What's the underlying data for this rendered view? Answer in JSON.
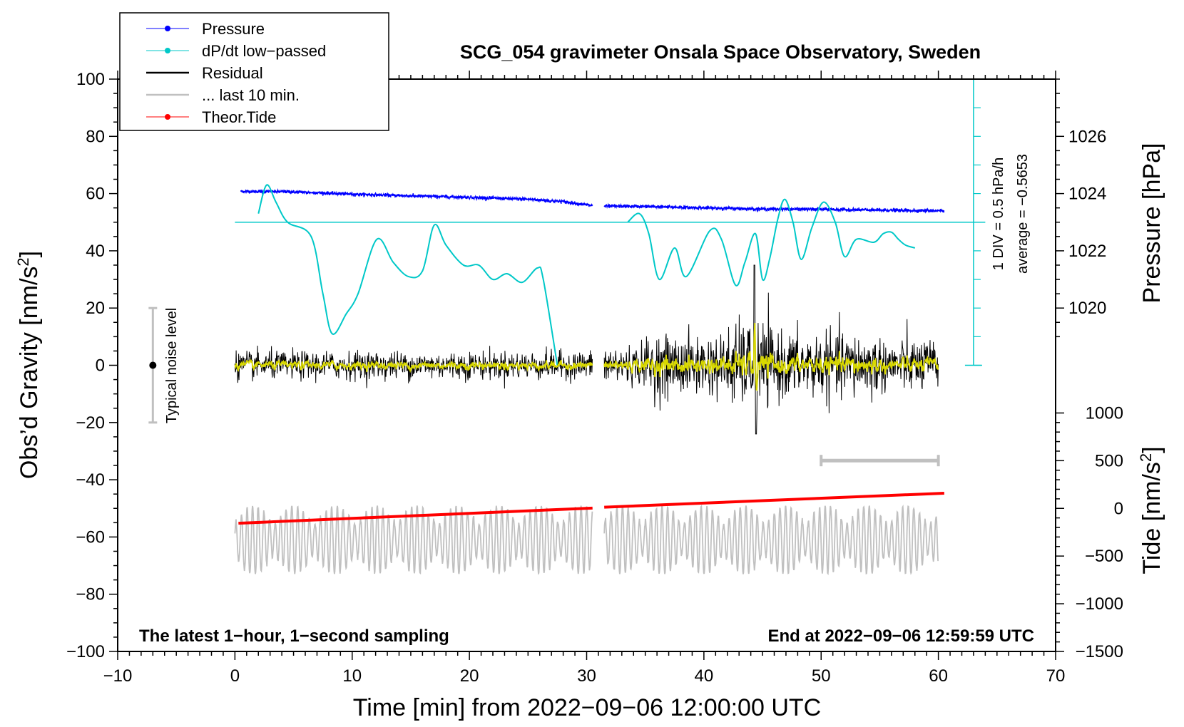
{
  "chart_data": {
    "type": "line",
    "title": "SCG_054 gravimeter Onsala Space Observatory, Sweden",
    "xlabel": "Time [min] from 2022−09−06 12:00:00 UTC",
    "ylabel_left": "Obs’d Gravity [nm/s",
    "ylabel_left_sup": "2",
    "ylabel_left_end": "]",
    "ylabel_right_top": "Pressure [hPa]",
    "ylabel_right_bottom": "Tide [nm/s",
    "ylabel_right_bottom_sup": "2",
    "ylabel_right_bottom_end": "]",
    "xlim": [
      -10,
      70
    ],
    "ylim": [
      -100,
      100
    ],
    "x_ticks": [
      -10,
      0,
      10,
      20,
      30,
      40,
      50,
      60,
      70
    ],
    "x_tick_labels": [
      "−10",
      "0",
      "10",
      "20",
      "30",
      "40",
      "50",
      "60",
      "70"
    ],
    "y_ticks": [
      -100,
      -80,
      -60,
      -40,
      -20,
      0,
      20,
      40,
      60,
      80,
      100
    ],
    "y_tick_labels": [
      "−100",
      "−80",
      "−60",
      "−40",
      "−20",
      "0",
      "20",
      "40",
      "60",
      "80",
      "100"
    ],
    "pressure_axis": {
      "ticks": [
        1026,
        1024,
        1022,
        1020
      ],
      "tick_labels": [
        "1026",
        "1024",
        "1022",
        "1020"
      ],
      "gravity_equiv": [
        80,
        60,
        40,
        20
      ]
    },
    "tide_axis": {
      "ticks": [
        1000,
        500,
        0,
        -500,
        -1000,
        -1500
      ],
      "tick_labels": [
        "1000",
        "500",
        "0",
        "−500",
        "−1000",
        "−1500"
      ],
      "gravity_equiv": [
        -16.7,
        -33.3,
        -50,
        -66.7,
        -83.3,
        -100
      ]
    },
    "legend": [
      {
        "label": "Pressure",
        "color": "#0000ff",
        "marker": true
      },
      {
        "label": "dP/dt low−passed",
        "color": "#00c8c8",
        "marker": true
      },
      {
        "label": "Residual",
        "color": "#000000",
        "marker": false
      },
      {
        "label": "... last 10 min.",
        "color": "#c0c0c0",
        "marker": false
      },
      {
        "label": "Theor.Tide",
        "color": "#ff0000",
        "marker": true
      }
    ],
    "series": [
      {
        "name": "Pressure",
        "color": "#0000ff",
        "segments": [
          {
            "x": [
              0.5,
              5,
              10,
              15,
              20,
              25,
              28,
              30.5
            ],
            "y": [
              60.8,
              60.6,
              59.8,
              59.2,
              58.7,
              58.0,
              57.2,
              55.8
            ]
          },
          {
            "x": [
              31.5,
              35,
              40,
              45,
              50,
              55,
              60.5
            ],
            "y": [
              55.6,
              55.5,
              55.0,
              54.6,
              54.5,
              54.2,
              54.0
            ]
          }
        ]
      },
      {
        "name": "dP/dt low-passed",
        "color": "#00c8c8",
        "segments": [
          {
            "x": [
              2,
              2.7,
              3.5,
              4.5,
              6.5,
              7.5,
              8.3,
              9.5,
              10.5,
              12.1,
              13.5,
              14.8,
              16,
              17,
              18,
              19.5,
              20.8,
              22,
              23.2,
              24.5,
              25.8,
              26.3,
              27.5
            ],
            "y": [
              53,
              63,
              57,
              50,
              45,
              25,
              11,
              18,
              25,
              44,
              36,
              31,
              33,
              49,
              42,
              35,
              35,
              30,
              32,
              29,
              34,
              30,
              0
            ]
          },
          {
            "x": [
              33.5,
              34.5,
              35.3,
              36.2,
              37.5,
              38.5,
              40.5,
              41.5,
              42.7,
              43.5,
              44.4,
              45,
              45.6,
              46.3,
              46.9,
              47.6,
              48.3,
              49.2,
              50.2,
              51.2,
              52,
              53,
              54.5,
              55.3,
              56,
              56.6,
              57.2,
              58
            ],
            "y": [
              50,
              53,
              46,
              30,
              41,
              31,
              47,
              44,
              28,
              36,
              46,
              30,
              37,
              51,
              58,
              50,
              37,
              48,
              57,
              50,
              38,
              44,
              43,
              46,
              46.5,
              44,
              42,
              41
            ]
          }
        ]
      },
      {
        "name": "Theor.Tide",
        "color": "#ff0000",
        "segments": [
          {
            "x": [
              0.3,
              30.5
            ],
            "y": [
              -55.2,
              -49.9
            ]
          },
          {
            "x": [
              31.5,
              60.5
            ],
            "y": [
              -49.6,
              -44.7
            ]
          }
        ]
      },
      {
        "name": "Residual",
        "color": "#000000",
        "note": "noise about 0, amplitude ~5 first half, larger after 35 min, spike +35 / -25 near 44.3 min"
      },
      {
        "name": "... last 10 min.",
        "color": "#c0c0c0",
        "note": "grey oscillation between about -77 and -44 (offset copy of residual)"
      }
    ],
    "dpdt_reference": {
      "value": 50,
      "label1": "1 DIV = 0.5 hPa/h",
      "label2": "average = −0.5653",
      "scale_x": 63,
      "scale_range": [
        0,
        100
      ]
    },
    "noise_bar": {
      "x": -7,
      "center": 0,
      "range": [
        -20,
        20
      ],
      "label": "Typical noise level"
    },
    "window_bar": {
      "x_range": [
        50,
        60
      ],
      "y": -33.3
    },
    "annotation_left": "The latest 1−hour, 1−second sampling",
    "annotation_right": "End at 2022−09−06 12:59:59 UTC"
  }
}
